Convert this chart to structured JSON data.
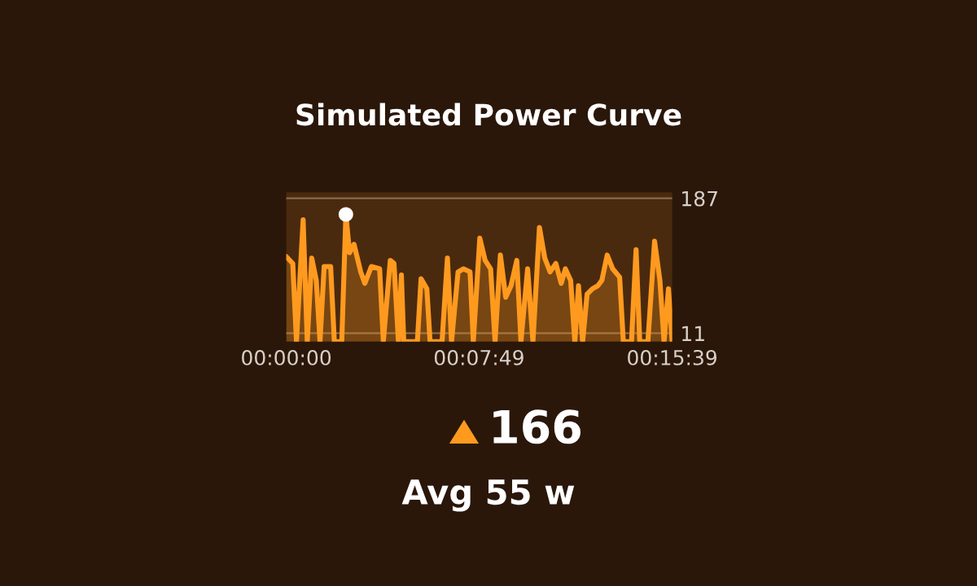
{
  "chart_data": {
    "type": "area",
    "title": "Simulated Power Curve",
    "x": [
      0,
      0.0044,
      0.0069,
      0.0114,
      0.0142,
      0.0172,
      0.0203,
      0.0228,
      0.0256,
      0.03,
      0.0325,
      0.0375,
      0.0403,
      0.0428,
      0.0458,
      0.0503,
      0.0531,
      0.0575,
      0.0631,
      0.0656,
      0.0703,
      0.0728,
      0.0758,
      0.0778,
      0.0794,
      0.0886,
      0.0911,
      0.095,
      0.0972,
      0.1053,
      0.1089,
      0.1117,
      0.1161,
      0.1197,
      0.1242,
      0.1264,
      0.1308,
      0.1344,
      0.1381,
      0.1411,
      0.1447,
      0.1483,
      0.1519,
      0.1558,
      0.1586,
      0.1631,
      0.1667,
      0.1711,
      0.1747,
      0.1783,
      0.1822,
      0.1858,
      0.1886,
      0.1922,
      0.195,
      0.1975,
      0.2003,
      0.2033,
      0.2069,
      0.2106,
      0.2133,
      0.2169,
      0.2206,
      0.2253,
      0.2278,
      0.2333,
      0.2364,
      0.2389,
      0.2444,
      0.2489,
      0.2525,
      0.2553,
      0.2583,
      0.2608
    ],
    "series": [
      {
        "color": "#ff9a1f",
        "values": [
          111,
          102,
          0,
          159,
          0,
          109,
          80,
          0,
          98,
          98,
          0,
          0,
          166,
          116,
          127,
          91,
          76,
          98,
          95,
          0,
          106,
          102,
          0,
          87,
          0,
          0,
          82,
          69,
          0,
          0,
          109,
          0,
          91,
          95,
          91,
          0,
          135,
          106,
          95,
          0,
          113,
          58,
          73,
          106,
          0,
          95,
          0,
          149,
          109,
          91,
          102,
          76,
          95,
          80,
          0,
          73,
          0,
          62,
          69,
          73,
          80,
          113,
          95,
          84,
          0,
          0,
          120,
          0,
          0,
          131,
          80,
          0,
          69,
          0
        ]
      },
      {
        "type": "scatter",
        "x": [
          0.0403
        ],
        "color": "#ffffff",
        "values": [
          166
        ]
      }
    ],
    "xlim": [
      0,
      0.2608
    ],
    "ylim": [
      0,
      195
    ],
    "xticks": [
      {
        "value": 0,
        "label": "00:00:00"
      },
      {
        "value": 0.1303,
        "label": "00:07:49"
      },
      {
        "value": 0.2608,
        "label": "00:15:39"
      }
    ],
    "yticks": [
      11,
      187
    ],
    "grid": "y",
    "annotations": [
      "166",
      "Avg 55 w"
    ]
  }
}
